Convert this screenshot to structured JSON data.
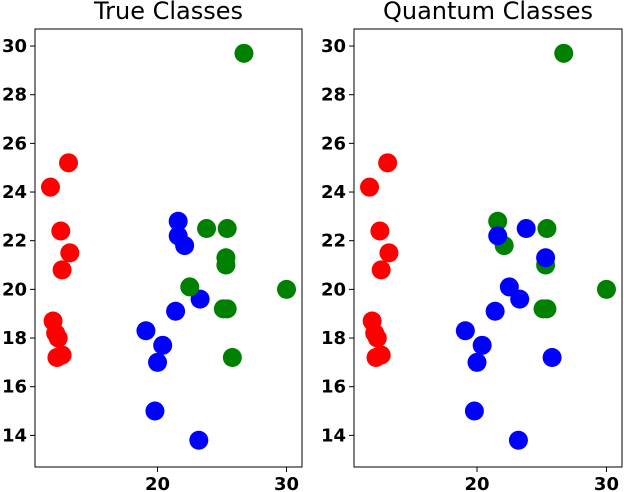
{
  "chart_data": [
    {
      "type": "scatter",
      "title": "True Classes",
      "xlabel": "",
      "ylabel": "",
      "xlim": [
        10.5,
        31.2
      ],
      "ylim": [
        12.7,
        30.7
      ],
      "xticks": [
        20,
        30
      ],
      "yticks": [
        14,
        16,
        18,
        20,
        22,
        24,
        26,
        28,
        30
      ],
      "grid": false,
      "series": [
        {
          "color": "#ff0000",
          "points": [
            [
              11.7,
              24.2
            ],
            [
              13.1,
              25.2
            ],
            [
              12.5,
              22.4
            ],
            [
              13.2,
              21.5
            ],
            [
              12.6,
              20.8
            ],
            [
              11.9,
              18.7
            ],
            [
              12.3,
              18.0
            ],
            [
              12.1,
              18.2
            ],
            [
              12.2,
              17.2
            ],
            [
              12.6,
              17.3
            ]
          ]
        },
        {
          "color": "#0000ff",
          "points": [
            [
              21.6,
              22.8
            ],
            [
              21.6,
              22.2
            ],
            [
              22.1,
              21.8
            ],
            [
              23.3,
              19.6
            ],
            [
              21.4,
              19.1
            ],
            [
              19.1,
              18.3
            ],
            [
              20.4,
              17.7
            ],
            [
              20.0,
              17.0
            ],
            [
              19.8,
              15.0
            ],
            [
              23.2,
              13.8
            ]
          ]
        },
        {
          "color": "#008000",
          "points": [
            [
              26.7,
              29.7
            ],
            [
              23.8,
              22.5
            ],
            [
              25.4,
              22.5
            ],
            [
              25.3,
              21.3
            ],
            [
              25.3,
              21.0
            ],
            [
              22.5,
              20.1
            ],
            [
              30.0,
              20.0
            ],
            [
              25.1,
              19.2
            ],
            [
              25.4,
              19.2
            ],
            [
              25.8,
              17.2
            ]
          ]
        }
      ]
    },
    {
      "type": "scatter",
      "title": "Quantum Classes",
      "xlabel": "",
      "ylabel": "",
      "xlim": [
        10.5,
        31.2
      ],
      "ylim": [
        12.7,
        30.7
      ],
      "xticks": [
        20,
        30
      ],
      "yticks": [
        14,
        16,
        18,
        20,
        22,
        24,
        26,
        28,
        30
      ],
      "grid": false,
      "series": [
        {
          "color": "#ff0000",
          "points": [
            [
              11.7,
              24.2
            ],
            [
              13.1,
              25.2
            ],
            [
              12.5,
              22.4
            ],
            [
              13.2,
              21.5
            ],
            [
              12.6,
              20.8
            ],
            [
              11.9,
              18.7
            ],
            [
              12.3,
              18.0
            ],
            [
              12.1,
              18.2
            ],
            [
              12.2,
              17.2
            ],
            [
              12.6,
              17.3
            ]
          ]
        },
        {
          "color": "#008000",
          "points": [
            [
              26.7,
              29.7
            ],
            [
              21.6,
              22.8
            ],
            [
              25.4,
              22.5
            ],
            [
              22.1,
              21.8
            ],
            [
              25.3,
              21.0
            ],
            [
              30.0,
              20.0
            ],
            [
              25.1,
              19.2
            ],
            [
              25.4,
              19.2
            ]
          ]
        },
        {
          "color": "#0000ff",
          "points": [
            [
              21.6,
              22.2
            ],
            [
              23.8,
              22.5
            ],
            [
              25.3,
              21.3
            ],
            [
              22.5,
              20.1
            ],
            [
              23.3,
              19.6
            ],
            [
              21.4,
              19.1
            ],
            [
              19.1,
              18.3
            ],
            [
              20.4,
              17.7
            ],
            [
              20.0,
              17.0
            ],
            [
              19.8,
              15.0
            ],
            [
              23.2,
              13.8
            ],
            [
              25.8,
              17.2
            ]
          ]
        }
      ]
    }
  ]
}
